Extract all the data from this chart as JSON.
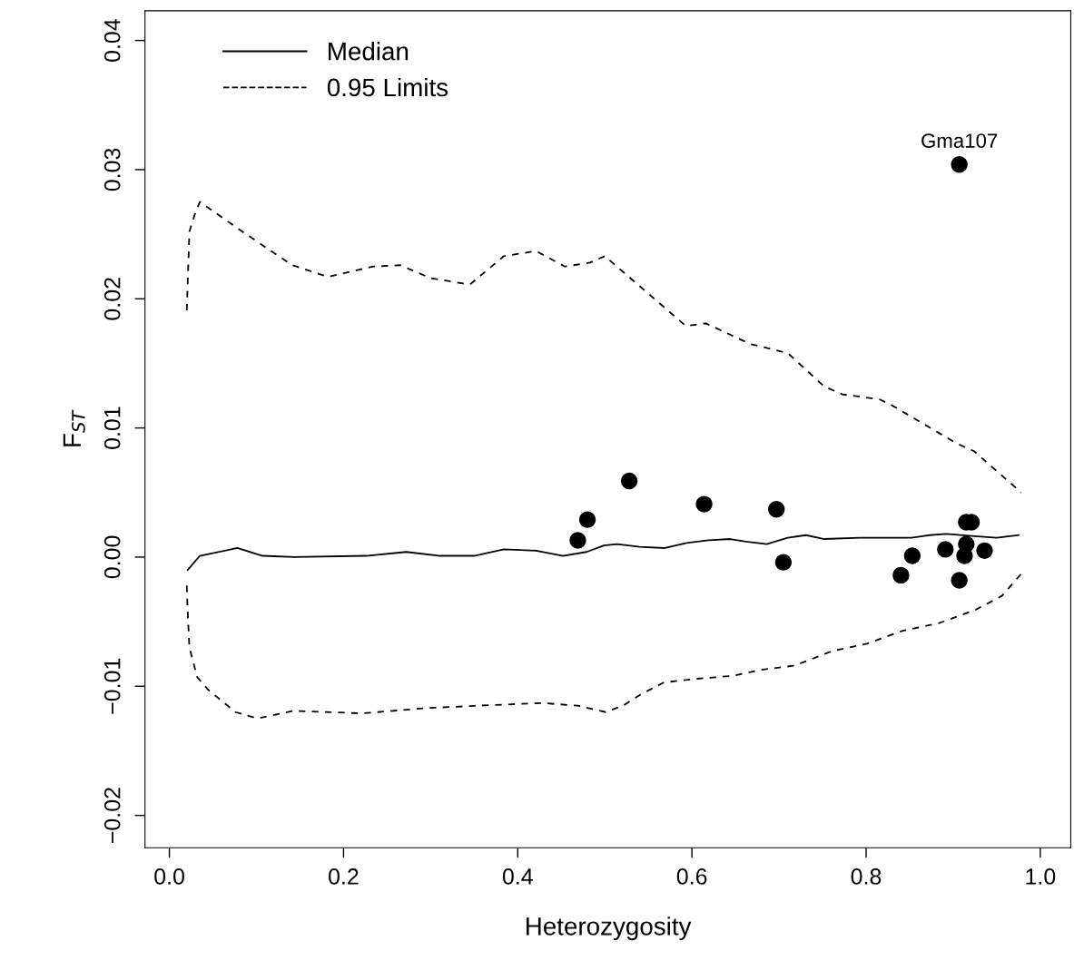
{
  "chart_data": {
    "type": "line",
    "xlabel": "Heterozygosity",
    "ylabel": "F$_{ST}$",
    "xlim": [
      -0.028,
      1.035
    ],
    "ylim": [
      -0.0225,
      0.0423
    ],
    "xticks": [
      {
        "value": 0,
        "label": "0.0"
      },
      0.2,
      0.4,
      0.6,
      0.8,
      {
        "value": 1,
        "label": "1.0"
      }
    ],
    "yticks": [
      {
        "value": -0.02,
        "label": "−0.02"
      },
      {
        "value": -0.01,
        "label": "−0.01"
      },
      {
        "value": 0,
        "label": "0.00"
      },
      0.01,
      0.02,
      0.03,
      0.04
    ],
    "grid": false,
    "legend": "top left",
    "series": [
      {
        "name": "Median",
        "color": "#000000",
        "line_style": "solid",
        "marker": "none",
        "x": [
          0.021,
          0.035,
          0.078,
          0.107,
          0.143,
          0.226,
          0.272,
          0.311,
          0.35,
          0.384,
          0.421,
          0.452,
          0.479,
          0.499,
          0.514,
          0.54,
          0.569,
          0.594,
          0.619,
          0.644,
          0.662,
          0.686,
          0.71,
          0.731,
          0.752,
          0.793,
          0.835,
          0.852,
          0.873,
          0.892,
          0.928,
          0.95,
          0.975
        ],
        "values": [
          -0.001,
          0.0001,
          0.0007,
          0.0001,
          0.0,
          0.0001,
          0.0004,
          0.0001,
          0.0001,
          0.0006,
          0.0005,
          0.0001,
          0.0004,
          0.0009,
          0.001,
          0.0008,
          0.0007,
          0.0011,
          0.0013,
          0.0014,
          0.0012,
          0.001,
          0.0015,
          0.0017,
          0.0014,
          0.0015,
          0.0015,
          0.0015,
          0.0017,
          0.0018,
          0.0016,
          0.0015,
          0.0017
        ]
      },
      {
        "name": "0.95 Limits",
        "color": "#000000",
        "line_style": "dashed",
        "marker": "none",
        "x": [
          0.02,
          0.023,
          0.029,
          0.035,
          0.086,
          0.141,
          0.182,
          0.234,
          0.265,
          0.3,
          0.345,
          0.384,
          0.421,
          0.454,
          0.483,
          0.5,
          0.593,
          0.616,
          0.667,
          0.71,
          0.752,
          0.773,
          0.816,
          0.831,
          0.904,
          0.924,
          0.978
        ],
        "values": [
          0.0191,
          0.0252,
          0.0265,
          0.0275,
          0.0251,
          0.0226,
          0.0217,
          0.0225,
          0.0226,
          0.0216,
          0.0211,
          0.0233,
          0.0237,
          0.0225,
          0.0228,
          0.0233,
          0.0179,
          0.0181,
          0.0165,
          0.0158,
          0.0132,
          0.0126,
          0.0122,
          0.0117,
          0.0088,
          0.0082,
          0.005
        ]
      },
      {
        "color": "#000000",
        "line_style": "dashed",
        "marker": "none",
        "x": [
          0.02,
          0.021,
          0.023,
          0.032,
          0.045,
          0.076,
          0.101,
          0.143,
          0.221,
          0.293,
          0.355,
          0.428,
          0.469,
          0.501,
          0.521,
          0.542,
          0.568,
          0.609,
          0.646,
          0.682,
          0.718,
          0.76,
          0.801,
          0.842,
          0.884,
          0.925,
          0.956,
          0.978
        ],
        "values": [
          -0.0022,
          -0.0042,
          -0.007,
          -0.0093,
          -0.0103,
          -0.012,
          -0.0125,
          -0.0119,
          -0.0121,
          -0.0117,
          -0.0115,
          -0.0113,
          -0.0115,
          -0.012,
          -0.0115,
          -0.0106,
          -0.0097,
          -0.0094,
          -0.0092,
          -0.0087,
          -0.0084,
          -0.0073,
          -0.0067,
          -0.0057,
          -0.0051,
          -0.0041,
          -0.003,
          -0.0013
        ]
      },
      {
        "type": "scatter",
        "color": "#000000",
        "marker": "circle",
        "x": [
          0.469,
          0.48,
          0.528,
          0.614,
          0.697,
          0.705,
          0.84,
          0.853,
          0.891,
          0.907,
          0.915,
          0.921,
          0.915,
          0.913,
          0.936,
          0.907
        ],
        "values": [
          0.0013,
          0.0029,
          0.0059,
          0.0041,
          0.0037,
          -0.0004,
          -0.0014,
          0.0001,
          0.0006,
          -0.0018,
          0.0027,
          0.0027,
          0.001,
          0.0001,
          0.0005,
          0.0304
        ]
      }
    ],
    "annotations": [
      {
        "text": "Gma107",
        "x": 0.907,
        "y": 0.0304
      }
    ]
  }
}
